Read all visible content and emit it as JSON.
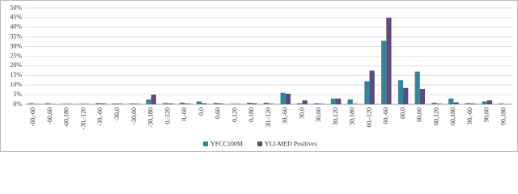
{
  "chart_data": {
    "type": "bar",
    "categories": [
      "-60,-60",
      "-60,60",
      "-60,180",
      "-30,-120",
      "-30,-60",
      "-30,0",
      "-30,60",
      "-30,180",
      "0,-120",
      "0,-60",
      "0,0",
      "0,60",
      "0,120",
      "0,180",
      "30,-120",
      "30,-60",
      "30,0",
      "30,60",
      "30,120",
      "30,180",
      "60,-120",
      "60,-60",
      "60,0",
      "60,60",
      "60,120",
      "60,180",
      "90,-60",
      "90,60",
      "90,180"
    ],
    "series": [
      {
        "name": "YFCC100M",
        "color": "#31859c",
        "values": [
          0.5,
          0.5,
          0.3,
          0.3,
          0.6,
          0.4,
          0.4,
          2.5,
          0.6,
          0.8,
          1.5,
          0.7,
          0.3,
          0.8,
          0.8,
          6,
          0.5,
          0.5,
          3,
          2.5,
          12,
          33,
          12.5,
          17,
          0.8,
          3,
          0.6,
          1.5,
          0.4
        ]
      },
      {
        "name": "YLI-MED Positives",
        "color": "#604a7b",
        "values": [
          0.2,
          0.2,
          0.2,
          0.2,
          0.4,
          0.3,
          0.3,
          5,
          0.4,
          0.4,
          0.5,
          0.4,
          0.2,
          0.5,
          0.3,
          5.5,
          2,
          0.3,
          3,
          0.3,
          17.5,
          45,
          8.5,
          8,
          0.3,
          1,
          0.4,
          2,
          0.1
        ]
      }
    ],
    "ylim": [
      0,
      50
    ],
    "yticks": [
      {
        "value": 0,
        "label": "0%"
      },
      {
        "value": 5,
        "label": "5%"
      },
      {
        "value": 10,
        "label": "10%"
      },
      {
        "value": 15,
        "label": "15%"
      },
      {
        "value": 20,
        "label": "20%"
      },
      {
        "value": 25,
        "label": "25%"
      },
      {
        "value": 30,
        "label": "30%"
      },
      {
        "value": 35,
        "label": "35%"
      },
      {
        "value": 40,
        "label": "40%"
      },
      {
        "value": 45,
        "label": "45%"
      },
      {
        "value": 50,
        "label": "50%"
      }
    ],
    "grid": true,
    "legend": "bottom"
  }
}
